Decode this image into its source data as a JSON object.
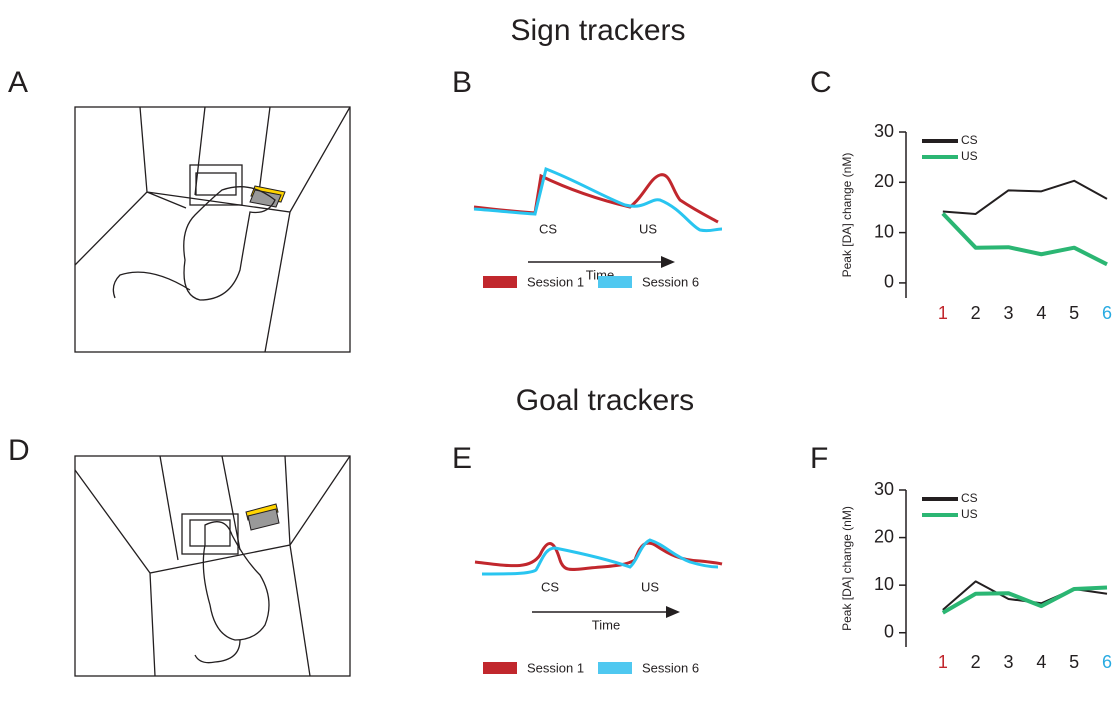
{
  "rows": [
    {
      "title": "Sign trackers",
      "letters": [
        "A",
        "B",
        "C"
      ],
      "cue_labels": [
        "CS",
        "US"
      ],
      "time_label": "Time",
      "legend": [
        "Session 1",
        "Session 6"
      ]
    },
    {
      "title": "Goal trackers",
      "letters": [
        "D",
        "E",
        "F"
      ],
      "cue_labels": [
        "CS",
        "US"
      ],
      "time_label": "Time",
      "legend": [
        "Session 1",
        "Session 6"
      ]
    }
  ],
  "chart_data": [
    {
      "type": "line",
      "y_label": "Peak [DA] change (nM)",
      "x": [
        1,
        2,
        3,
        4,
        5,
        6
      ],
      "series": [
        {
          "name": "CS",
          "color": "#231f20",
          "width": 2,
          "values": [
            14.2,
            13.7,
            18.4,
            18.2,
            20.3,
            16.7
          ]
        },
        {
          "name": "US",
          "color": "#2bb673",
          "width": 4,
          "values": [
            13.8,
            7.0,
            7.1,
            5.7,
            7.0,
            3.7
          ]
        }
      ],
      "xlim": [
        0,
        6
      ],
      "xticks": [
        1,
        2,
        3,
        4,
        5,
        6
      ],
      "xtick_colors": [
        "#c1272d",
        "#231f20",
        "#231f20",
        "#231f20",
        "#231f20",
        "#29abe2"
      ],
      "ylim": [
        -3,
        30
      ],
      "yticks": [
        0,
        10,
        20,
        30
      ],
      "legend": "upper left"
    },
    {
      "type": "line",
      "y_label": "Peak [DA] change (nM)",
      "x": [
        1,
        2,
        3,
        4,
        5,
        6
      ],
      "series": [
        {
          "name": "CS",
          "color": "#231f20",
          "width": 2,
          "values": [
            4.8,
            10.8,
            7.1,
            6.2,
            9.2,
            8.2
          ]
        },
        {
          "name": "US",
          "color": "#2bb673",
          "width": 4,
          "values": [
            4.2,
            8.2,
            8.3,
            5.6,
            9.2,
            9.5
          ]
        }
      ],
      "xlim": [
        0,
        6
      ],
      "xticks": [
        1,
        2,
        3,
        4,
        5,
        6
      ],
      "xtick_colors": [
        "#c1272d",
        "#231f20",
        "#231f20",
        "#231f20",
        "#231f20",
        "#29abe2"
      ],
      "ylim": [
        -3,
        30
      ],
      "yticks": [
        0,
        10,
        20,
        30
      ],
      "legend": "upper left"
    }
  ]
}
